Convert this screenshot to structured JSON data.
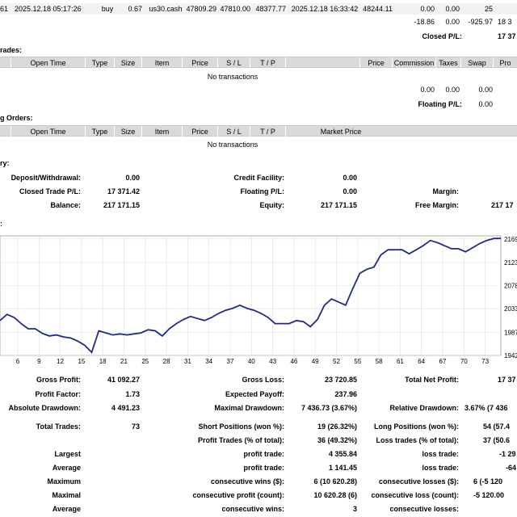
{
  "closed_row": {
    "cells": [
      "61",
      "2025.12.18 05:17:26",
      "buy",
      "0.67",
      "us30.cash",
      "47809.29",
      "47810.00",
      "48377.77",
      "2025.12.18 16:33:42",
      "48244.11",
      "0.00",
      "0.00",
      "25"
    ]
  },
  "closed_totals": {
    "values": [
      "-18.86",
      "0.00",
      "-925.97",
      "18 3"
    ],
    "closed_pl_label": "Closed P/L:",
    "closed_pl_value": "17 37"
  },
  "open_trades": {
    "title": "rades:",
    "headers": [
      "Open Time",
      "Type",
      "Size",
      "Item",
      "Price",
      "S / L",
      "T / P",
      "Price",
      "Commission",
      "Taxes",
      "Swap",
      "Pro"
    ],
    "empty_message": "No transactions",
    "totals": [
      "0.00",
      "0.00",
      "0.00"
    ],
    "floating_label": "Floating P/L:",
    "floating_value": "0.00"
  },
  "working_orders": {
    "title": "g Orders:",
    "headers": [
      "Open Time",
      "Type",
      "Size",
      "Item",
      "Price",
      "S / L",
      "T / P",
      "Market Price"
    ],
    "empty_message": "No transactions"
  },
  "summary": {
    "title": "ry:",
    "deposit_label": "Deposit/Withdrawal:",
    "deposit_value": "0.00",
    "closed_pl_label": "Closed Trade P/L:",
    "closed_pl_value": "17 371.42",
    "balance_label": "Balance:",
    "balance_value": "217 171.15",
    "credit_label": "Credit Facility:",
    "credit_value": "0.00",
    "floating_label": "Floating P/L:",
    "floating_value": "0.00",
    "equity_label": "Equity:",
    "equity_value": "217 171.15",
    "margin_label": "Margin:",
    "margin_value": "",
    "free_margin_label": "Free Margin:",
    "free_margin_value": "217 17"
  },
  "graph_title": ":",
  "chart_data": {
    "type": "line",
    "x_ticks": [
      "6",
      "9",
      "12",
      "15",
      "18",
      "21",
      "25",
      "28",
      "31",
      "34",
      "37",
      "40",
      "43",
      "46",
      "49",
      "52",
      "55",
      "58",
      "61",
      "64",
      "67",
      "70",
      "73"
    ],
    "y_ticks": [
      "2169",
      "2123",
      "2078",
      "2033",
      "1987",
      "1942"
    ],
    "ylim": [
      1942,
      2175
    ],
    "series_color": "#1f2a8c",
    "values": [
      2010,
      2022,
      2016,
      2004,
      1994,
      1994,
      1985,
      1980,
      1982,
      1978,
      1976,
      1970,
      1962,
      1948,
      1990,
      1986,
      1982,
      1984,
      1982,
      1984,
      1986,
      1992,
      1990,
      1980,
      1994,
      2004,
      2012,
      2018,
      2014,
      2010,
      2016,
      2024,
      2030,
      2034,
      2040,
      2034,
      2030,
      2024,
      2016,
      2004,
      2004,
      2004,
      2010,
      2008,
      1998,
      2012,
      2040,
      2052,
      2046,
      2040,
      2072,
      2102,
      2110,
      2114,
      2138,
      2148,
      2148,
      2148,
      2140,
      2148,
      2156,
      2166,
      2162,
      2156,
      2150,
      2150,
      2144,
      2152,
      2160,
      2166,
      2170,
      2170
    ]
  },
  "stats": {
    "gross_profit_label": "Gross Profit:",
    "gross_profit_value": "41 092.27",
    "gross_loss_label": "Gross Loss:",
    "gross_loss_value": "23 720.85",
    "total_net_label": "Total Net Profit:",
    "total_net_value": "17 37",
    "profit_factor_label": "Profit Factor:",
    "profit_factor_value": "1.73",
    "expected_payoff_label": "Expected Payoff:",
    "expected_payoff_value": "237.96",
    "abs_dd_label": "Absolute Drawdown:",
    "abs_dd_value": "4 491.23",
    "max_dd_label": "Maximal Drawdown:",
    "max_dd_value": "7 436.73 (3.67%)",
    "rel_dd_label": "Relative Drawdown:",
    "rel_dd_value": "3.67% (7 436",
    "total_trades_label": "Total Trades:",
    "total_trades_value": "73",
    "short_label": "Short Positions (won %):",
    "short_value": "19 (26.32%)",
    "long_label": "Long Positions (won %):",
    "long_value": "54 (57.4",
    "profit_trades_label": "Profit Trades (% of total):",
    "profit_trades_value": "36 (49.32%)",
    "loss_trades_label": "Loss trades (% of total):",
    "loss_trades_value": "37 (50.6",
    "largest_label": "Largest",
    "largest_profit_label": "profit trade:",
    "largest_profit_value": "4 355.84",
    "largest_loss_label": "loss trade:",
    "largest_loss_value": "-1 29",
    "average_label": "Average",
    "avg_profit_label": "profit trade:",
    "avg_profit_value": "1 141.45",
    "avg_loss_label": "loss trade:",
    "avg_loss_value": "-64",
    "maximum_label": "Maximum",
    "max_cons_wins_label": "consecutive wins ($):",
    "max_cons_wins_value": "6 (10 620.28)",
    "max_cons_losses_label": "consecutive losses ($):",
    "max_cons_losses_value": "6 (-5 120",
    "maximal_label": "Maximal",
    "maximal_cons_profit_label": "consecutive profit (count):",
    "maximal_cons_profit_value": "10 620.28 (6)",
    "maximal_cons_loss_label": "consecutive loss (count):",
    "maximal_cons_loss_value": "-5 120.00",
    "average2_label": "Average",
    "avg_cons_wins_label": "consecutive wins:",
    "avg_cons_wins_value": "3",
    "avg_cons_losses_label": "consecutive losses:",
    "avg_cons_losses_value": ""
  }
}
